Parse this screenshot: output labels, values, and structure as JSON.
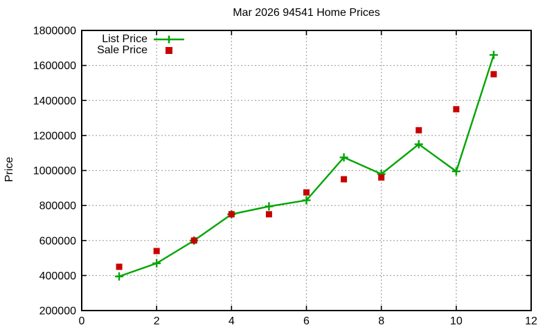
{
  "window": {
    "background_color": "#ffffff"
  },
  "chart_data": {
    "type": "line",
    "title": "Mar 2026 94541 Home Prices",
    "xlabel": "",
    "ylabel": "Price",
    "x": [
      1,
      2,
      3,
      4,
      5,
      6,
      7,
      8,
      9,
      10,
      11
    ],
    "series": [
      {
        "name": "List Price",
        "render": "line-with-plus-markers",
        "marker": "plus",
        "color": "#00a400",
        "values": [
          395000,
          470000,
          600000,
          750000,
          795000,
          830000,
          1075000,
          980000,
          1150000,
          995000,
          1660000
        ]
      },
      {
        "name": "Sale Price",
        "render": "scatter",
        "marker": "filled-square",
        "color": "#c80000",
        "values": [
          450000,
          540000,
          600000,
          750000,
          750000,
          875000,
          950000,
          960000,
          1230000,
          1350000,
          1550000
        ]
      }
    ],
    "xlim": [
      0,
      12
    ],
    "ylim": [
      200000,
      1800000
    ],
    "xticks": [
      0,
      2,
      4,
      6,
      8,
      10,
      12
    ],
    "yticks": [
      200000,
      400000,
      600000,
      800000,
      1000000,
      1200000,
      1400000,
      1600000,
      1800000
    ],
    "grid": true,
    "grid_style": "dashed",
    "grid_color": "#a8a8a8",
    "border_color": "#000000",
    "legend_position": "top-left-inside",
    "legend_entries": [
      "List Price",
      "Sale Price"
    ]
  }
}
